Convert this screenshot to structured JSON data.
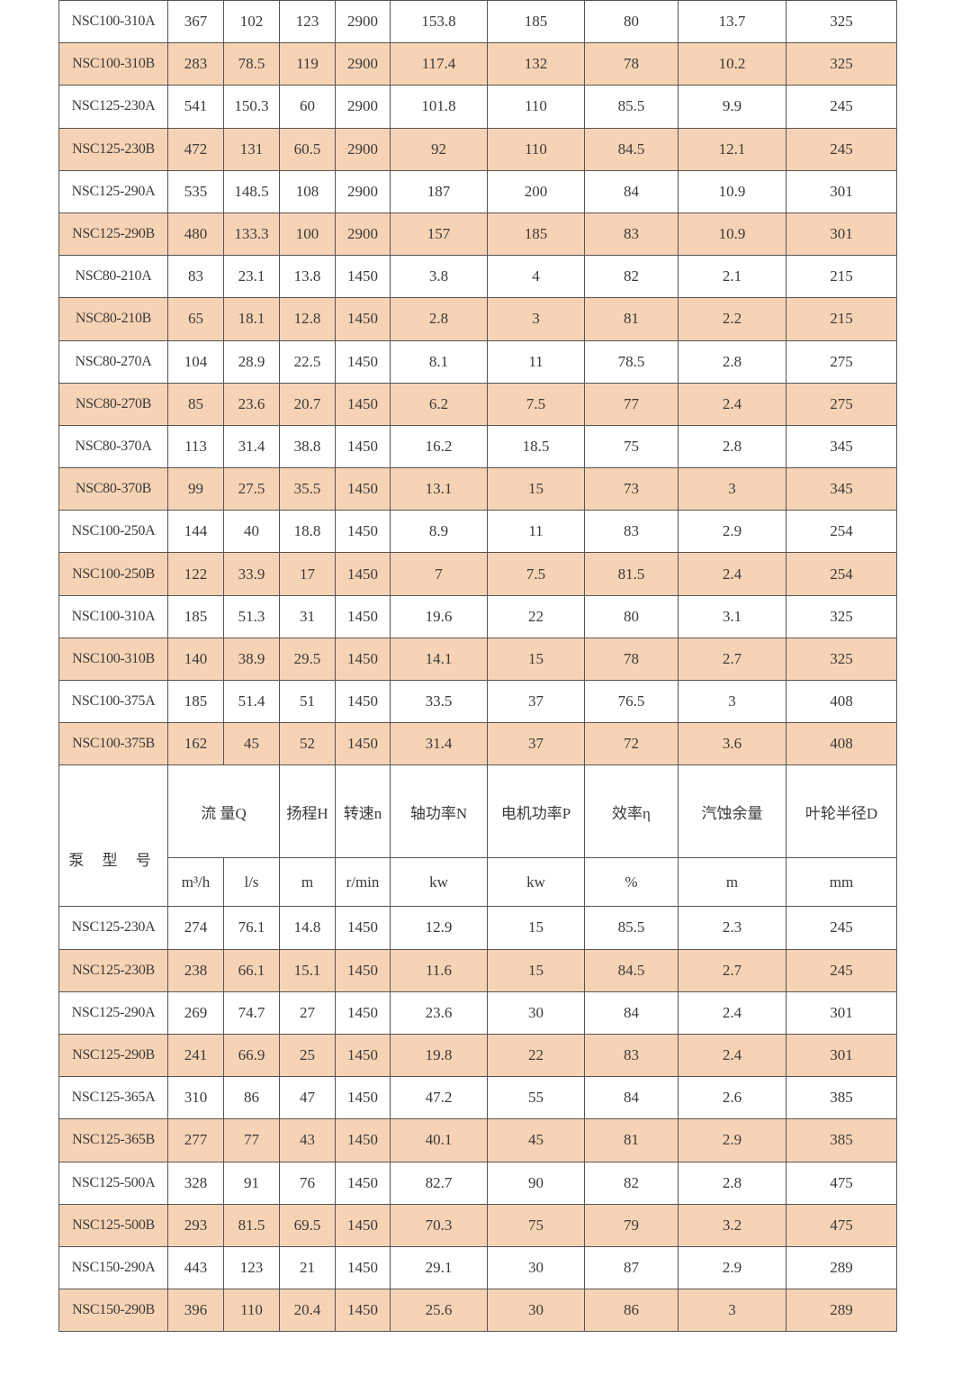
{
  "colors": {
    "alt_row": "#f7d3b5",
    "border": "#555555",
    "text": "#3a3a3a"
  },
  "header": {
    "model": "泵 型 号",
    "flow": "流 量Q",
    "head": "扬程H",
    "speed": "转速n",
    "shaft_power": "轴功率N",
    "motor_power": "电机功率P",
    "efficiency": "效率η",
    "npsh": "汽蚀余量",
    "impeller": "叶轮半径D",
    "units": [
      "m³/h",
      "l/s",
      "m",
      "r/min",
      "kw",
      "kw",
      "%",
      "m",
      "mm"
    ]
  },
  "rows_top": [
    [
      "NSC100-310A",
      "367",
      "102",
      "123",
      "2900",
      "153.8",
      "185",
      "80",
      "13.7",
      "325"
    ],
    [
      "NSC100-310B",
      "283",
      "78.5",
      "119",
      "2900",
      "117.4",
      "132",
      "78",
      "10.2",
      "325"
    ],
    [
      "NSC125-230A",
      "541",
      "150.3",
      "60",
      "2900",
      "101.8",
      "110",
      "85.5",
      "9.9",
      "245"
    ],
    [
      "NSC125-230B",
      "472",
      "131",
      "60.5",
      "2900",
      "92",
      "110",
      "84.5",
      "12.1",
      "245"
    ],
    [
      "NSC125-290A",
      "535",
      "148.5",
      "108",
      "2900",
      "187",
      "200",
      "84",
      "10.9",
      "301"
    ],
    [
      "NSC125-290B",
      "480",
      "133.3",
      "100",
      "2900",
      "157",
      "185",
      "83",
      "10.9",
      "301"
    ],
    [
      "NSC80-210A",
      "83",
      "23.1",
      "13.8",
      "1450",
      "3.8",
      "4",
      "82",
      "2.1",
      "215"
    ],
    [
      "NSC80-210B",
      "65",
      "18.1",
      "12.8",
      "1450",
      "2.8",
      "3",
      "81",
      "2.2",
      "215"
    ],
    [
      "NSC80-270A",
      "104",
      "28.9",
      "22.5",
      "1450",
      "8.1",
      "11",
      "78.5",
      "2.8",
      "275"
    ],
    [
      "NSC80-270B",
      "85",
      "23.6",
      "20.7",
      "1450",
      "6.2",
      "7.5",
      "77",
      "2.4",
      "275"
    ],
    [
      "NSC80-370A",
      "113",
      "31.4",
      "38.8",
      "1450",
      "16.2",
      "18.5",
      "75",
      "2.8",
      "345"
    ],
    [
      "NSC80-370B",
      "99",
      "27.5",
      "35.5",
      "1450",
      "13.1",
      "15",
      "73",
      "3",
      "345"
    ],
    [
      "NSC100-250A",
      "144",
      "40",
      "18.8",
      "1450",
      "8.9",
      "11",
      "83",
      "2.9",
      "254"
    ],
    [
      "NSC100-250B",
      "122",
      "33.9",
      "17",
      "1450",
      "7",
      "7.5",
      "81.5",
      "2.4",
      "254"
    ],
    [
      "NSC100-310A",
      "185",
      "51.3",
      "31",
      "1450",
      "19.6",
      "22",
      "80",
      "3.1",
      "325"
    ],
    [
      "NSC100-310B",
      "140",
      "38.9",
      "29.5",
      "1450",
      "14.1",
      "15",
      "78",
      "2.7",
      "325"
    ],
    [
      "NSC100-375A",
      "185",
      "51.4",
      "51",
      "1450",
      "33.5",
      "37",
      "76.5",
      "3",
      "408"
    ],
    [
      "NSC100-375B",
      "162",
      "45",
      "52",
      "1450",
      "31.4",
      "37",
      "72",
      "3.6",
      "408"
    ]
  ],
  "rows_bottom": [
    [
      "NSC125-230A",
      "274",
      "76.1",
      "14.8",
      "1450",
      "12.9",
      "15",
      "85.5",
      "2.3",
      "245"
    ],
    [
      "NSC125-230B",
      "238",
      "66.1",
      "15.1",
      "1450",
      "11.6",
      "15",
      "84.5",
      "2.7",
      "245"
    ],
    [
      "NSC125-290A",
      "269",
      "74.7",
      "27",
      "1450",
      "23.6",
      "30",
      "84",
      "2.4",
      "301"
    ],
    [
      "NSC125-290B",
      "241",
      "66.9",
      "25",
      "1450",
      "19.8",
      "22",
      "83",
      "2.4",
      "301"
    ],
    [
      "NSC125-365A",
      "310",
      "86",
      "47",
      "1450",
      "47.2",
      "55",
      "84",
      "2.6",
      "385"
    ],
    [
      "NSC125-365B",
      "277",
      "77",
      "43",
      "1450",
      "40.1",
      "45",
      "81",
      "2.9",
      "385"
    ],
    [
      "NSC125-500A",
      "328",
      "91",
      "76",
      "1450",
      "82.7",
      "90",
      "82",
      "2.8",
      "475"
    ],
    [
      "NSC125-500B",
      "293",
      "81.5",
      "69.5",
      "1450",
      "70.3",
      "75",
      "79",
      "3.2",
      "475"
    ],
    [
      "NSC150-290A",
      "443",
      "123",
      "21",
      "1450",
      "29.1",
      "30",
      "87",
      "2.9",
      "289"
    ],
    [
      "NSC150-290B",
      "396",
      "110",
      "20.4",
      "1450",
      "25.6",
      "30",
      "86",
      "3",
      "289"
    ]
  ]
}
